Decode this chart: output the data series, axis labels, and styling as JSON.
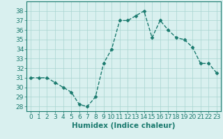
{
  "x": [
    0,
    1,
    2,
    3,
    4,
    5,
    6,
    7,
    8,
    9,
    10,
    11,
    12,
    13,
    14,
    15,
    16,
    17,
    18,
    19,
    20,
    21,
    22,
    23
  ],
  "y": [
    31,
    31,
    31,
    30.5,
    30,
    29.5,
    28.2,
    28,
    29,
    32.5,
    34,
    37,
    37,
    37.5,
    38,
    35.2,
    37,
    36,
    35.2,
    35,
    34.2,
    32.5,
    32.5,
    31.5
  ],
  "line_color": "#1a7a6e",
  "marker": "D",
  "marker_size": 2.5,
  "bg_color": "#d9f0ef",
  "grid_color": "#a8d4d0",
  "xlabel": "Humidex (Indice chaleur)",
  "ylim": [
    27.5,
    39.0
  ],
  "xlim": [
    -0.5,
    23.5
  ],
  "yticks": [
    28,
    29,
    30,
    31,
    32,
    33,
    34,
    35,
    36,
    37,
    38
  ],
  "xticks": [
    0,
    1,
    2,
    3,
    4,
    5,
    6,
    7,
    8,
    9,
    10,
    11,
    12,
    13,
    14,
    15,
    16,
    17,
    18,
    19,
    20,
    21,
    22,
    23
  ],
  "tick_label_size": 6.5,
  "xlabel_size": 7.5,
  "linewidth": 1.0
}
